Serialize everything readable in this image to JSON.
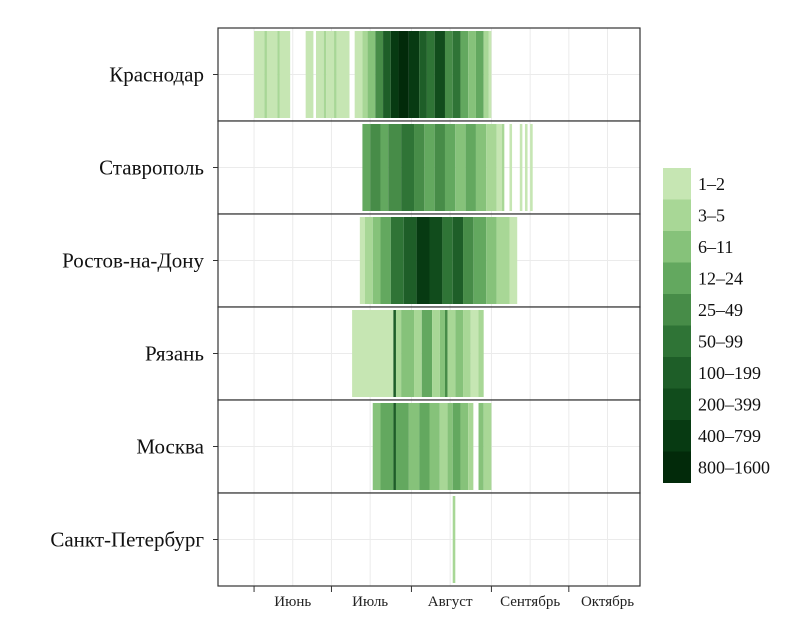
{
  "chart_data": {
    "type": "heatmap",
    "title": "",
    "xlabel": "",
    "ylabel": "",
    "rows": [
      "Краснодар",
      "Ставрополь",
      "Ростов-на-Дону",
      "Рязань",
      "Москва",
      "Санкт-Петербург"
    ],
    "x_ticks": [
      "Июнь",
      "Июль",
      "Август",
      "Сентябрь",
      "Октябрь"
    ],
    "grid": true,
    "legend_position": "right",
    "legend": [
      {
        "label": "1–2",
        "color": "#c6e6b3"
      },
      {
        "label": "3–5",
        "color": "#a8d796"
      },
      {
        "label": "6–11",
        "color": "#86c27a"
      },
      {
        "label": "12–24",
        "color": "#63a85f"
      },
      {
        "label": "25–49",
        "color": "#478c48"
      },
      {
        "label": "50–99",
        "color": "#2f7436"
      },
      {
        "label": "100–199",
        "color": "#1e5e28"
      },
      {
        "label": "200–399",
        "color": "#114c1c"
      },
      {
        "label": "400–799",
        "color": "#073a12"
      },
      {
        "label": "800–1600",
        "color": "#022a0a"
      }
    ],
    "series": [
      {
        "name": "Краснодар",
        "segments": [
          {
            "start": "2016-06-01",
            "end": "2016-06-05",
            "level": 0
          },
          {
            "start": "2016-06-05",
            "end": "2016-06-06",
            "level": 1
          },
          {
            "start": "2016-06-06",
            "end": "2016-06-10",
            "level": 0
          },
          {
            "start": "2016-06-10",
            "end": "2016-06-11",
            "level": 1
          },
          {
            "start": "2016-06-11",
            "end": "2016-06-15",
            "level": 0
          },
          {
            "start": "2016-06-21",
            "end": "2016-06-24",
            "level": 0
          },
          {
            "start": "2016-06-25",
            "end": "2016-06-28",
            "level": 0
          },
          {
            "start": "2016-06-28",
            "end": "2016-06-29",
            "level": 1
          },
          {
            "start": "2016-06-29",
            "end": "2016-07-02",
            "level": 0
          },
          {
            "start": "2016-07-02",
            "end": "2016-07-03",
            "level": 1
          },
          {
            "start": "2016-07-03",
            "end": "2016-07-08",
            "level": 0
          },
          {
            "start": "2016-07-10",
            "end": "2016-07-13",
            "level": 0
          },
          {
            "start": "2016-07-13",
            "end": "2016-07-15",
            "level": 1
          },
          {
            "start": "2016-07-15",
            "end": "2016-07-18",
            "level": 2
          },
          {
            "start": "2016-07-18",
            "end": "2016-07-21",
            "level": 4
          },
          {
            "start": "2016-07-21",
            "end": "2016-07-24",
            "level": 6
          },
          {
            "start": "2016-07-24",
            "end": "2016-07-27",
            "level": 8
          },
          {
            "start": "2016-07-27",
            "end": "2016-07-31",
            "level": 9
          },
          {
            "start": "2016-07-31",
            "end": "2016-08-04",
            "level": 8
          },
          {
            "start": "2016-08-04",
            "end": "2016-08-07",
            "level": 6
          },
          {
            "start": "2016-08-07",
            "end": "2016-08-10",
            "level": 5
          },
          {
            "start": "2016-08-10",
            "end": "2016-08-14",
            "level": 7
          },
          {
            "start": "2016-08-14",
            "end": "2016-08-17",
            "level": 4
          },
          {
            "start": "2016-08-17",
            "end": "2016-08-20",
            "level": 5
          },
          {
            "start": "2016-08-20",
            "end": "2016-08-23",
            "level": 3
          },
          {
            "start": "2016-08-23",
            "end": "2016-08-26",
            "level": 2
          },
          {
            "start": "2016-08-26",
            "end": "2016-08-29",
            "level": 3
          },
          {
            "start": "2016-08-29",
            "end": "2016-08-31",
            "level": 1
          },
          {
            "start": "2016-08-31",
            "end": "2016-09-01",
            "level": 0
          }
        ]
      },
      {
        "name": "Ставрополь",
        "segments": [
          {
            "start": "2016-07-13",
            "end": "2016-07-16",
            "level": 3
          },
          {
            "start": "2016-07-16",
            "end": "2016-07-20",
            "level": 4
          },
          {
            "start": "2016-07-20",
            "end": "2016-07-23",
            "level": 3
          },
          {
            "start": "2016-07-23",
            "end": "2016-07-28",
            "level": 4
          },
          {
            "start": "2016-07-28",
            "end": "2016-08-02",
            "level": 5
          },
          {
            "start": "2016-08-02",
            "end": "2016-08-06",
            "level": 4
          },
          {
            "start": "2016-08-06",
            "end": "2016-08-10",
            "level": 3
          },
          {
            "start": "2016-08-10",
            "end": "2016-08-14",
            "level": 4
          },
          {
            "start": "2016-08-14",
            "end": "2016-08-18",
            "level": 3
          },
          {
            "start": "2016-08-18",
            "end": "2016-08-22",
            "level": 2
          },
          {
            "start": "2016-08-22",
            "end": "2016-08-26",
            "level": 3
          },
          {
            "start": "2016-08-26",
            "end": "2016-08-30",
            "level": 2
          },
          {
            "start": "2016-08-30",
            "end": "2016-09-03",
            "level": 1
          },
          {
            "start": "2016-09-03",
            "end": "2016-09-05",
            "level": 0
          },
          {
            "start": "2016-09-05",
            "end": "2016-09-06",
            "level": 1
          },
          {
            "start": "2016-09-08",
            "end": "2016-09-09",
            "level": 0
          },
          {
            "start": "2016-09-12",
            "end": "2016-09-13",
            "level": 0
          },
          {
            "start": "2016-09-14",
            "end": "2016-09-15",
            "level": 0
          },
          {
            "start": "2016-09-16",
            "end": "2016-09-17",
            "level": 0
          }
        ]
      },
      {
        "name": "Ростов-на-Дону",
        "segments": [
          {
            "start": "2016-07-12",
            "end": "2016-07-14",
            "level": 0
          },
          {
            "start": "2016-07-14",
            "end": "2016-07-17",
            "level": 1
          },
          {
            "start": "2016-07-17",
            "end": "2016-07-20",
            "level": 2
          },
          {
            "start": "2016-07-20",
            "end": "2016-07-24",
            "level": 3
          },
          {
            "start": "2016-07-24",
            "end": "2016-07-29",
            "level": 5
          },
          {
            "start": "2016-07-29",
            "end": "2016-08-03",
            "level": 6
          },
          {
            "start": "2016-08-03",
            "end": "2016-08-08",
            "level": 8
          },
          {
            "start": "2016-08-08",
            "end": "2016-08-13",
            "level": 7
          },
          {
            "start": "2016-08-13",
            "end": "2016-08-17",
            "level": 5
          },
          {
            "start": "2016-08-17",
            "end": "2016-08-21",
            "level": 6
          },
          {
            "start": "2016-08-21",
            "end": "2016-08-25",
            "level": 4
          },
          {
            "start": "2016-08-25",
            "end": "2016-08-30",
            "level": 3
          },
          {
            "start": "2016-08-30",
            "end": "2016-09-03",
            "level": 2
          },
          {
            "start": "2016-09-03",
            "end": "2016-09-08",
            "level": 1
          },
          {
            "start": "2016-09-08",
            "end": "2016-09-11",
            "level": 0
          }
        ]
      },
      {
        "name": "Рязань",
        "segments": [
          {
            "start": "2016-07-09",
            "end": "2016-07-25",
            "level": 0
          },
          {
            "start": "2016-07-25",
            "end": "2016-07-26",
            "level": 6
          },
          {
            "start": "2016-07-26",
            "end": "2016-07-28",
            "level": 1
          },
          {
            "start": "2016-07-28",
            "end": "2016-08-02",
            "level": 2
          },
          {
            "start": "2016-08-02",
            "end": "2016-08-05",
            "level": 1
          },
          {
            "start": "2016-08-05",
            "end": "2016-08-09",
            "level": 3
          },
          {
            "start": "2016-08-09",
            "end": "2016-08-12",
            "level": 1
          },
          {
            "start": "2016-08-12",
            "end": "2016-08-14",
            "level": 2
          },
          {
            "start": "2016-08-14",
            "end": "2016-08-15",
            "level": 4
          },
          {
            "start": "2016-08-15",
            "end": "2016-08-18",
            "level": 1
          },
          {
            "start": "2016-08-18",
            "end": "2016-08-21",
            "level": 2
          },
          {
            "start": "2016-08-21",
            "end": "2016-08-24",
            "level": 1
          },
          {
            "start": "2016-08-24",
            "end": "2016-08-27",
            "level": 0
          },
          {
            "start": "2016-08-27",
            "end": "2016-08-29",
            "level": 1
          }
        ]
      },
      {
        "name": "Москва",
        "segments": [
          {
            "start": "2016-07-17",
            "end": "2016-07-20",
            "level": 2
          },
          {
            "start": "2016-07-20",
            "end": "2016-07-25",
            "level": 3
          },
          {
            "start": "2016-07-25",
            "end": "2016-07-26",
            "level": 6
          },
          {
            "start": "2016-07-26",
            "end": "2016-07-31",
            "level": 3
          },
          {
            "start": "2016-07-31",
            "end": "2016-08-04",
            "level": 2
          },
          {
            "start": "2016-08-04",
            "end": "2016-08-08",
            "level": 3
          },
          {
            "start": "2016-08-08",
            "end": "2016-08-12",
            "level": 2
          },
          {
            "start": "2016-08-12",
            "end": "2016-08-15",
            "level": 1
          },
          {
            "start": "2016-08-15",
            "end": "2016-08-17",
            "level": 2
          },
          {
            "start": "2016-08-17",
            "end": "2016-08-20",
            "level": 3
          },
          {
            "start": "2016-08-20",
            "end": "2016-08-23",
            "level": 2
          },
          {
            "start": "2016-08-23",
            "end": "2016-08-25",
            "level": 1
          },
          {
            "start": "2016-08-27",
            "end": "2016-08-29",
            "level": 2
          },
          {
            "start": "2016-08-29",
            "end": "2016-09-01",
            "level": 1
          }
        ]
      },
      {
        "name": "Санкт-Петербург",
        "segments": [
          {
            "start": "2016-08-17",
            "end": "2016-08-18",
            "level": 1
          }
        ]
      }
    ]
  }
}
